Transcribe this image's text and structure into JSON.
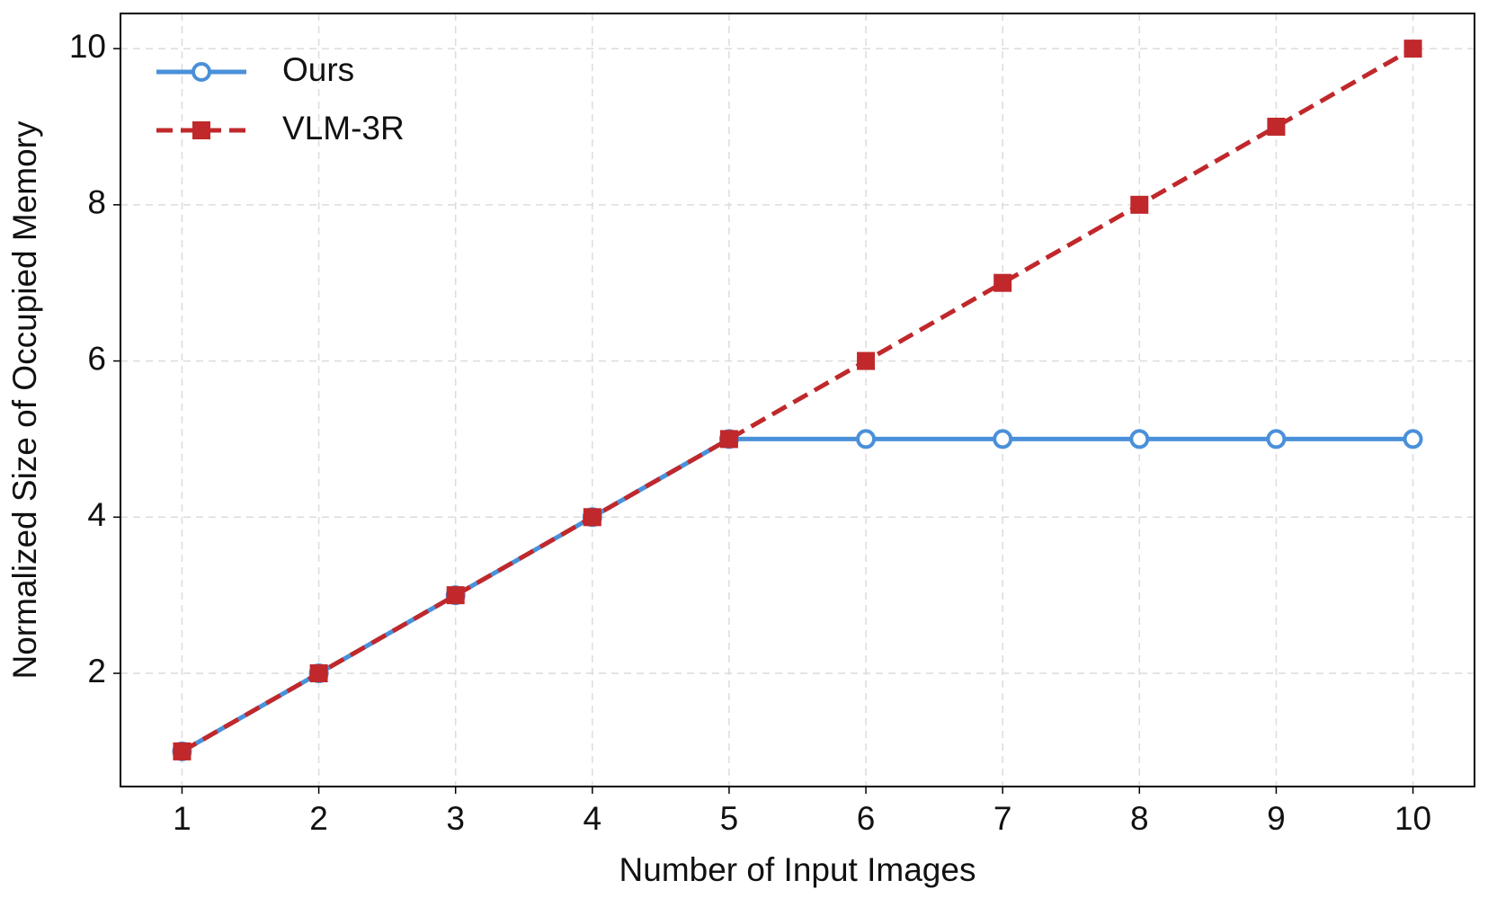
{
  "chart_data": {
    "type": "line",
    "x_label": "Number of Input Images",
    "y_label": "Normalized Size of Occupied Memory",
    "x": [
      1,
      2,
      3,
      4,
      5,
      6,
      7,
      8,
      9,
      10
    ],
    "series": [
      {
        "name": "Ours",
        "color": "#4a90d9",
        "marker": "circle",
        "dash": "solid",
        "values": [
          1,
          2,
          3,
          4,
          5,
          5,
          5,
          5,
          5,
          5
        ]
      },
      {
        "name": "VLM-3R",
        "color": "#c0282b",
        "marker": "square",
        "dash": "dashed",
        "values": [
          1,
          2,
          3,
          4,
          5,
          6,
          7,
          8,
          9,
          10
        ]
      }
    ],
    "xlim": [
      0.55,
      10.45
    ],
    "ylim": [
      0.55,
      10.45
    ],
    "xticks": [
      1,
      2,
      3,
      4,
      5,
      6,
      7,
      8,
      9,
      10
    ],
    "yticks": [
      2,
      4,
      6,
      8,
      10
    ],
    "grid": true,
    "legend": "upper left"
  }
}
